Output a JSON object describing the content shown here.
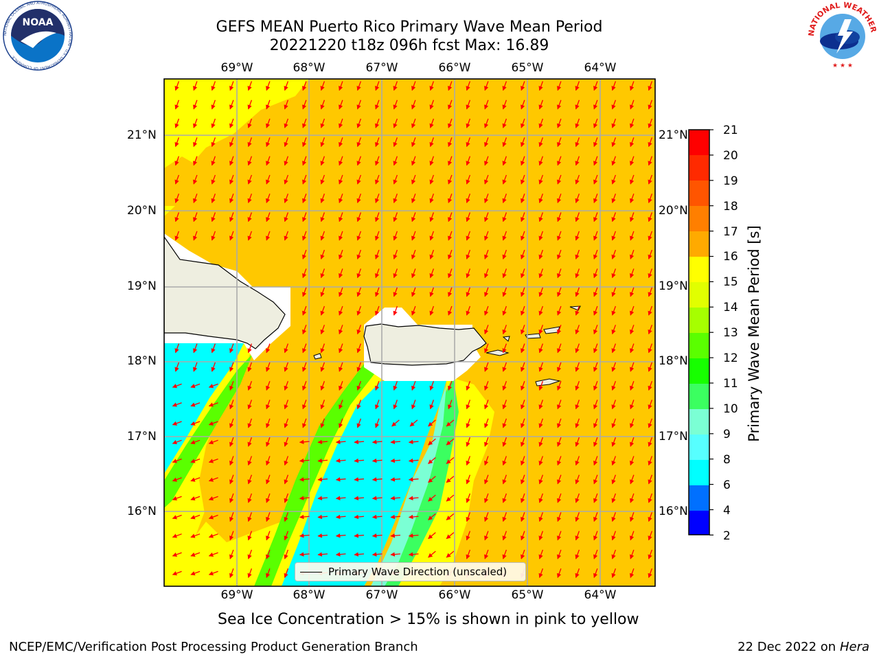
{
  "title": {
    "line1": "GEFS MEAN Puerto Rico Primary Wave Mean Period",
    "line2": "20221220 t18z 096h fcst   Max: 16.89"
  },
  "axes": {
    "lon_labels": [
      "69°W",
      "68°W",
      "67°W",
      "66°W",
      "65°W",
      "64°W"
    ],
    "lat_labels": [
      "21°N",
      "20°N",
      "19°N",
      "18°N",
      "17°N",
      "16°N"
    ]
  },
  "colorbar": {
    "label": "Primary Wave Mean Period [s]",
    "ticks": [
      "21",
      "20",
      "19",
      "18",
      "17",
      "16",
      "15",
      "14",
      "13",
      "12",
      "11",
      "10",
      "9",
      "8",
      "6",
      "4",
      "2"
    ],
    "colors": [
      "#fe0000",
      "#ff2a00",
      "#ff5500",
      "#ff7f00",
      "#ffaa00",
      "#ffc800",
      "#ffff00",
      "#e1ff00",
      "#a6ff00",
      "#5aff00",
      "#17ff00",
      "#3bff60",
      "#7bffd4",
      "#57ffff",
      "#00ffff",
      "#0070ff",
      "#0000ff"
    ]
  },
  "legend": {
    "label": "Primary Wave Direction (unscaled)"
  },
  "note": "Sea Ice Concentration > 15% is shown in pink to yellow",
  "footer": {
    "left": "NCEP/EMC/Verification Post Processing Product Generation Branch",
    "right_date": "22 Dec 2022 on",
    "right_host": "Hera"
  },
  "logos": {
    "noaa_text": "NOAA",
    "noaa_ring": "NATIONAL OCEANIC AND ATMOSPHERIC ADMINISTRATION · U.S. DEPARTMENT OF COMMERCE",
    "nws_ring": "NATIONAL WEATHER SERVICE"
  },
  "colors": {
    "orange_17": "#ffc800",
    "yellow_15": "#ffff00",
    "cyan_7": "#00ffff",
    "land": "#eeeee0",
    "arrow": "#ff0000",
    "grid": "#aaaaaa"
  }
}
